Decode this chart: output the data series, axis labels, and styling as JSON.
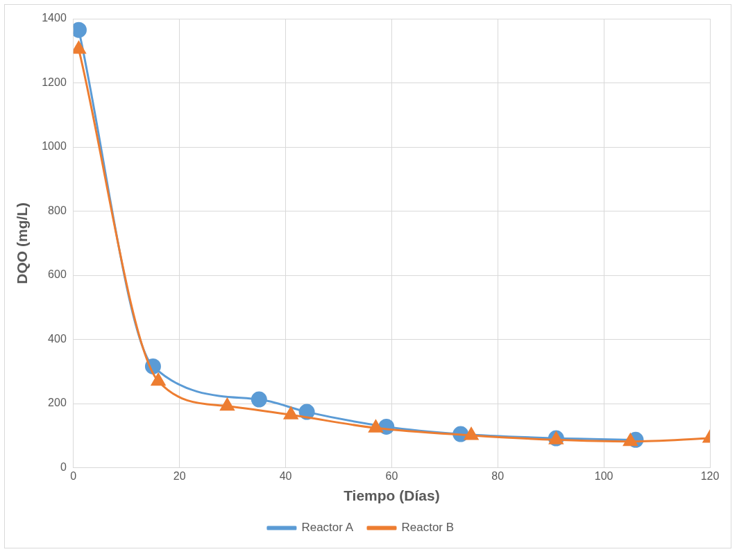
{
  "chart_data": {
    "type": "line",
    "xlabel": "Tiempo (Días)",
    "ylabel": "DQO (mg/L)",
    "xlim": [
      0,
      120
    ],
    "xticks": [
      0,
      20,
      40,
      60,
      80,
      100,
      120
    ],
    "ylim": [
      0,
      1400
    ],
    "yticks": [
      0,
      200,
      400,
      600,
      800,
      1000,
      1200,
      1400
    ],
    "grid": true,
    "legend": "bottom",
    "series": [
      {
        "name": "Reactor A",
        "color": "#5b9bd5",
        "marker": "circle",
        "x": [
          1,
          15,
          35,
          44,
          59,
          73,
          91,
          106
        ],
        "values": [
          1365,
          316,
          213,
          174,
          128,
          105,
          92,
          87
        ]
      },
      {
        "name": "Reactor B",
        "color": "#ed7d31",
        "marker": "triangle",
        "x": [
          1,
          16,
          29,
          41,
          57,
          75,
          91,
          105,
          120
        ],
        "values": [
          1305,
          270,
          192,
          165,
          124,
          101,
          87,
          82,
          92
        ]
      }
    ]
  }
}
